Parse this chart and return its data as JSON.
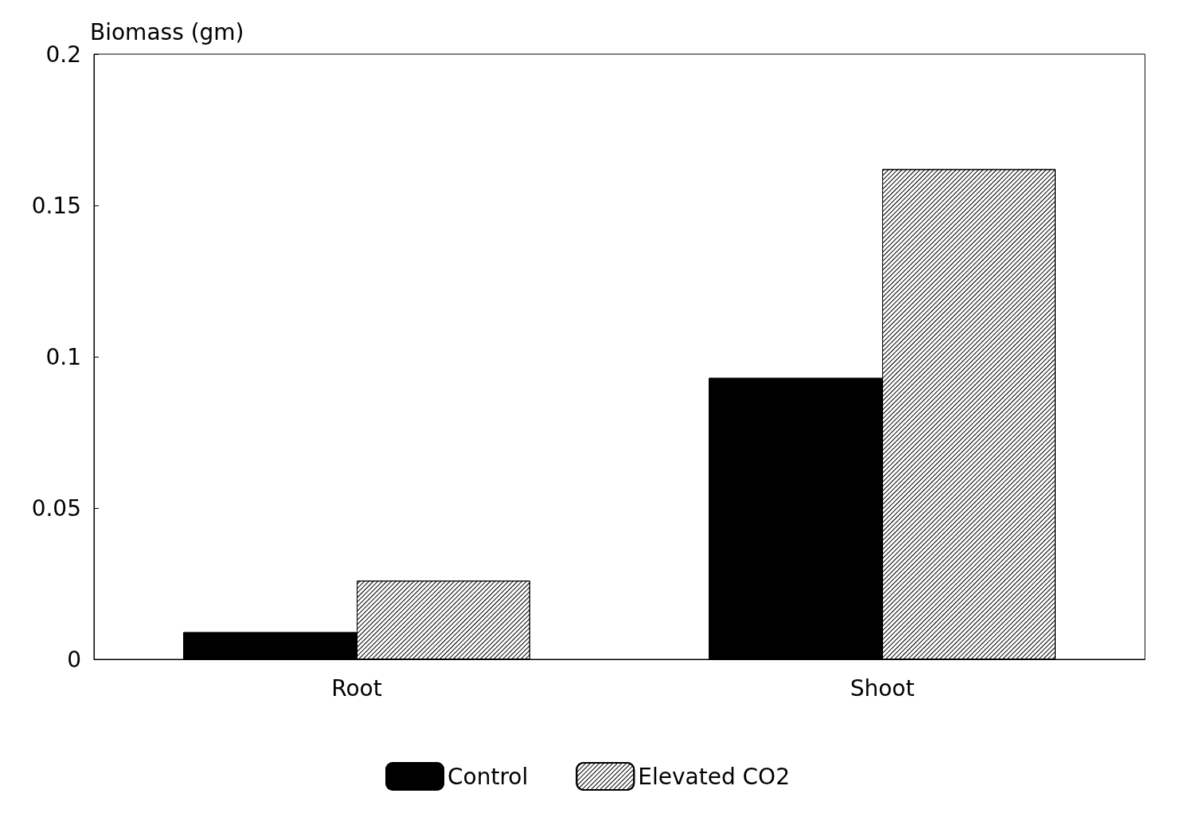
{
  "chart_data": {
    "type": "bar",
    "ylabel": "Biomass (gm)",
    "categories": [
      "Root",
      "Shoot"
    ],
    "series": [
      {
        "name": "Control",
        "color": "#000000",
        "values": [
          0.009,
          0.093
        ]
      },
      {
        "name": "Elevated CO2",
        "color": "#ffffff",
        "values": [
          0.026,
          0.162
        ]
      }
    ],
    "ylim": [
      0,
      0.2
    ],
    "yticks": [
      0,
      0.05,
      0.1,
      0.15,
      0.2
    ],
    "grid": false,
    "legend": "bottom"
  }
}
